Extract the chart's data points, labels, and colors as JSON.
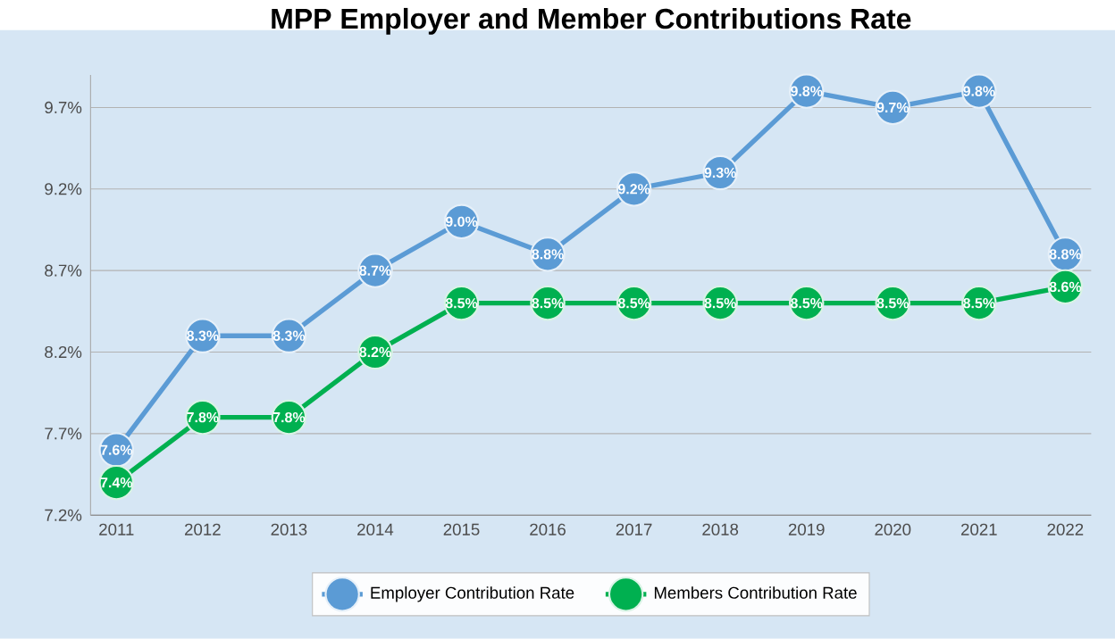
{
  "chart_data": {
    "type": "line",
    "title": "MPP Employer and Member Contributions Rate",
    "categories": [
      "2011",
      "2012",
      "2013",
      "2014",
      "2015",
      "2016",
      "2017",
      "2018",
      "2019",
      "2020",
      "2021",
      "2022"
    ],
    "series": [
      {
        "name": "Employer Contribution Rate",
        "color": "#5b9bd5",
        "values": [
          7.6,
          8.3,
          8.3,
          8.7,
          9.0,
          8.8,
          9.2,
          9.3,
          9.8,
          9.7,
          9.8,
          8.8
        ],
        "value_labels": [
          "7.6%",
          "8.3%",
          "8.3%",
          "8.7%",
          "9.0%",
          "8.8%",
          "9.2%",
          "9.3%",
          "9.8%",
          "9.7%",
          "9.8%",
          "8.8%"
        ]
      },
      {
        "name": "Members Contribution Rate",
        "color": "#00b050",
        "values": [
          7.4,
          7.8,
          7.8,
          8.2,
          8.5,
          8.5,
          8.5,
          8.5,
          8.5,
          8.5,
          8.5,
          8.6
        ],
        "value_labels": [
          "7.4%",
          "7.8%",
          "7.8%",
          "8.2%",
          "8.5%",
          "8.5%",
          "8.5%",
          "8.5%",
          "8.5%",
          "8.5%",
          "8.5%",
          "8.6%"
        ]
      }
    ],
    "ylim": [
      7.2,
      9.9
    ],
    "yticks": [
      {
        "value": 7.2,
        "label": "7.2%"
      },
      {
        "value": 7.7,
        "label": "7.7%"
      },
      {
        "value": 8.2,
        "label": "8.2%"
      },
      {
        "value": 8.7,
        "label": "8.7%"
      },
      {
        "value": 9.2,
        "label": "9.2%"
      },
      {
        "value": 9.7,
        "label": "9.7%"
      }
    ],
    "grid": "y",
    "legend": "bottom",
    "marker": "circle",
    "line_style": "solid"
  }
}
